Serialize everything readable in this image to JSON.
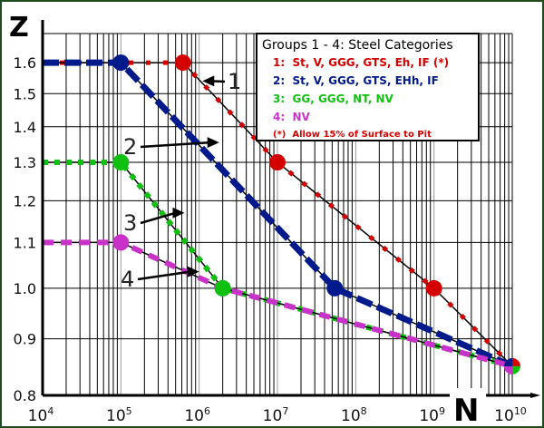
{
  "chart_data": {
    "type": "line",
    "title": "",
    "xlabel": "N",
    "ylabel": "Z",
    "x_scale": "log",
    "y_scale": "log",
    "xlim": [
      10000,
      10000000000
    ],
    "ylim": [
      0.8,
      1.7
    ],
    "grid": true,
    "x_ticks": [
      {
        "value": 10000,
        "base": "10",
        "exp": "4"
      },
      {
        "value": 100000,
        "base": "10",
        "exp": "5"
      },
      {
        "value": 1000000,
        "base": "10",
        "exp": "6"
      },
      {
        "value": 10000000,
        "base": "10",
        "exp": "7"
      },
      {
        "value": 100000000,
        "base": "10",
        "exp": "8"
      },
      {
        "value": 1000000000,
        "base": "10",
        "exp": "9"
      },
      {
        "value": 10000000000,
        "base": "10",
        "exp": "10"
      }
    ],
    "y_ticks": [
      {
        "value": 0.8,
        "label": "0.8"
      },
      {
        "value": 0.9,
        "label": "0.9"
      },
      {
        "value": 1.0,
        "label": "1.0"
      },
      {
        "value": 1.1,
        "label": "1.1"
      },
      {
        "value": 1.2,
        "label": "1.2"
      },
      {
        "value": 1.3,
        "label": "1.3"
      },
      {
        "value": 1.4,
        "label": "1.4"
      },
      {
        "value": 1.5,
        "label": "1.5"
      },
      {
        "value": 1.6,
        "label": "1.6"
      }
    ],
    "legend": {
      "placement": "top-right",
      "title": "Groups 1 - 4: Steel Categories",
      "entries": [
        {
          "label": "1:  St, V, GGG, GTS, Eh, IF (*)",
          "color": "#d40000"
        },
        {
          "label": "2:  St, V, GGG, GTS, EHh, IF",
          "color": "#001a8c"
        },
        {
          "label": "3:  GG, GGG, NT, NV",
          "color": "#10c010"
        },
        {
          "label": "4:  NV",
          "color": "#c832c8"
        }
      ],
      "note": "(*)  Allow 15% of Surface to Pit",
      "note_color": "#d40000"
    },
    "series": [
      {
        "name": "1",
        "color": "#d40000",
        "style": "small-squares",
        "points": [
          [
            10000,
            1.6
          ],
          [
            620000,
            1.6
          ],
          [
            10000000,
            1.3
          ],
          [
            1000000000,
            1.0
          ],
          [
            10000000000,
            0.85
          ]
        ],
        "markers": [
          [
            620000,
            1.6
          ],
          [
            10000000,
            1.3
          ],
          [
            1000000000,
            1.0
          ]
        ]
      },
      {
        "name": "2",
        "color": "#001a8c",
        "style": "thick-dashes",
        "points": [
          [
            10000,
            1.6
          ],
          [
            100000,
            1.6
          ],
          [
            54000000,
            1.0
          ],
          [
            10000000000,
            0.85
          ]
        ],
        "markers": [
          [
            100000,
            1.6
          ],
          [
            54000000,
            1.0
          ]
        ]
      },
      {
        "name": "3",
        "color": "#10c010",
        "style": "square-dots",
        "points": [
          [
            10000,
            1.3
          ],
          [
            100000,
            1.3
          ],
          [
            2000000,
            1.0
          ],
          [
            10000000000,
            0.85
          ]
        ],
        "markers": [
          [
            100000,
            1.3
          ],
          [
            2000000,
            1.0
          ]
        ]
      },
      {
        "name": "4",
        "color": "#c832c8",
        "style": "dashes",
        "points": [
          [
            10000,
            1.1
          ],
          [
            100000,
            1.1
          ],
          [
            2000000,
            1.0
          ],
          [
            10000000000,
            0.85
          ]
        ],
        "markers": [
          [
            100000,
            1.1
          ],
          [
            2000000,
            1.0
          ]
        ]
      }
    ],
    "end_point": [
      10000000000,
      0.85
    ],
    "annotations": [
      {
        "label": "1",
        "arrow_to": [
          1100000,
          1.54
        ]
      },
      {
        "label": "2",
        "arrow_to": [
          1800000,
          1.355
        ]
      },
      {
        "label": "3",
        "arrow_to": [
          650000,
          1.17
        ]
      },
      {
        "label": "4",
        "arrow_to": [
          1000000,
          1.035
        ]
      }
    ]
  }
}
